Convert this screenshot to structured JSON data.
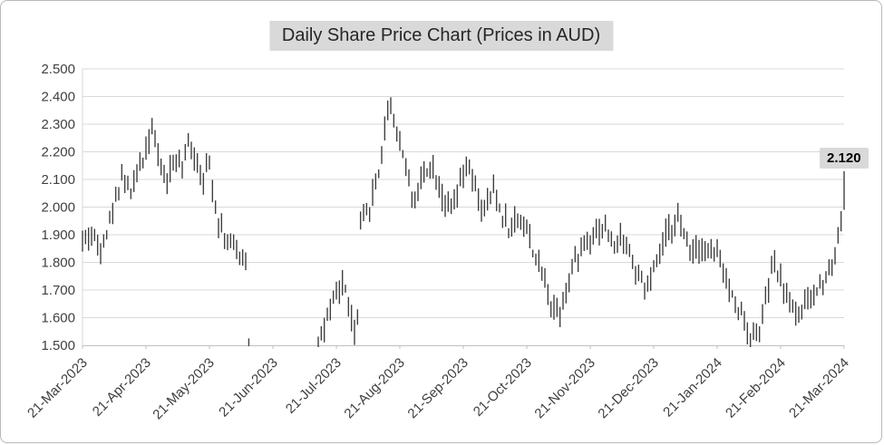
{
  "chart_data": {
    "type": "bar",
    "subtype": "daily-high-low-price-bars",
    "title": "Daily Share Price Chart (Prices in AUD)",
    "xlabel": "",
    "ylabel": "",
    "ylim": [
      1.5,
      2.5
    ],
    "y_tick_step": 0.1,
    "y_tick_labels": [
      "1.500",
      "1.600",
      "1.700",
      "1.800",
      "1.900",
      "2.000",
      "2.100",
      "2.200",
      "2.300",
      "2.400",
      "2.500"
    ],
    "x_tick_labels": [
      "21-Mar-2023",
      "21-Apr-2023",
      "21-May-2023",
      "21-Jun-2023",
      "21-Jul-2023",
      "21-Aug-2023",
      "21-Sep-2023",
      "21-Oct-2023",
      "21-Nov-2023",
      "21-Dec-2023",
      "21-Jan-2024",
      "21-Feb-2024",
      "21-Mar-2024"
    ],
    "x_range_months": 12,
    "bars_total": 253,
    "grid": true,
    "legend": "none",
    "last_price_label": "2.120",
    "last_bar": {
      "lo": 1.99,
      "hi": 2.13,
      "close": 2.12
    },
    "gap_months": [
      2.61,
      3.68
    ],
    "isolated_bars": [
      {
        "m": 2.62,
        "lo": 1.497,
        "hi": 1.525
      }
    ],
    "anchors_m_price": [
      [
        0.0,
        1.88
      ],
      [
        0.14,
        1.91
      ],
      [
        0.26,
        1.85
      ],
      [
        0.43,
        1.94
      ],
      [
        0.54,
        2.05
      ],
      [
        0.63,
        2.14
      ],
      [
        0.74,
        2.04
      ],
      [
        0.86,
        2.12
      ],
      [
        1.0,
        2.22
      ],
      [
        1.09,
        2.3
      ],
      [
        1.2,
        2.16
      ],
      [
        1.34,
        2.1
      ],
      [
        1.46,
        2.18
      ],
      [
        1.57,
        2.12
      ],
      [
        1.66,
        2.24
      ],
      [
        1.77,
        2.19
      ],
      [
        1.89,
        2.1
      ],
      [
        2.0,
        2.15
      ],
      [
        2.11,
        1.99
      ],
      [
        2.23,
        1.89
      ],
      [
        2.37,
        1.86
      ],
      [
        2.5,
        1.82
      ],
      [
        2.6,
        1.81
      ],
      [
        3.7,
        1.52
      ],
      [
        3.8,
        1.56
      ],
      [
        3.91,
        1.62
      ],
      [
        4.0,
        1.68
      ],
      [
        4.09,
        1.73
      ],
      [
        4.19,
        1.66
      ],
      [
        4.27,
        1.53
      ],
      [
        4.33,
        1.57
      ],
      [
        4.37,
        1.92
      ],
      [
        4.46,
        1.97
      ],
      [
        4.56,
        2.03
      ],
      [
        4.66,
        2.12
      ],
      [
        4.76,
        2.27
      ],
      [
        4.83,
        2.4
      ],
      [
        4.91,
        2.31
      ],
      [
        5.0,
        2.24
      ],
      [
        5.1,
        2.14
      ],
      [
        5.2,
        2.02
      ],
      [
        5.34,
        2.1
      ],
      [
        5.49,
        2.17
      ],
      [
        5.63,
        2.07
      ],
      [
        5.79,
        1.98
      ],
      [
        5.93,
        2.06
      ],
      [
        6.06,
        2.15
      ],
      [
        6.2,
        2.05
      ],
      [
        6.34,
        1.97
      ],
      [
        6.46,
        2.07
      ],
      [
        6.6,
        1.98
      ],
      [
        6.74,
        1.92
      ],
      [
        6.86,
        1.97
      ],
      [
        7.0,
        1.92
      ],
      [
        7.11,
        1.84
      ],
      [
        7.26,
        1.74
      ],
      [
        7.4,
        1.65
      ],
      [
        7.51,
        1.61
      ],
      [
        7.61,
        1.7
      ],
      [
        7.76,
        1.8
      ],
      [
        7.9,
        1.88
      ],
      [
        8.09,
        1.92
      ],
      [
        8.24,
        1.93
      ],
      [
        8.36,
        1.85
      ],
      [
        8.5,
        1.9
      ],
      [
        8.61,
        1.84
      ],
      [
        8.74,
        1.76
      ],
      [
        8.86,
        1.69
      ],
      [
        9.0,
        1.76
      ],
      [
        9.11,
        1.84
      ],
      [
        9.24,
        1.91
      ],
      [
        9.36,
        1.98
      ],
      [
        9.46,
        1.9
      ],
      [
        9.6,
        1.85
      ],
      [
        9.74,
        1.87
      ],
      [
        9.89,
        1.83
      ],
      [
        10.0,
        1.84
      ],
      [
        10.11,
        1.75
      ],
      [
        10.26,
        1.66
      ],
      [
        10.4,
        1.6
      ],
      [
        10.54,
        1.52
      ],
      [
        10.66,
        1.56
      ],
      [
        10.77,
        1.67
      ],
      [
        10.89,
        1.8
      ],
      [
        11.0,
        1.74
      ],
      [
        11.11,
        1.67
      ],
      [
        11.26,
        1.61
      ],
      [
        11.4,
        1.65
      ],
      [
        11.54,
        1.68
      ],
      [
        11.7,
        1.76
      ],
      [
        11.83,
        1.81
      ],
      [
        11.91,
        1.89
      ],
      [
        11.97,
        2.01
      ],
      [
        12.0,
        2.12
      ]
    ]
  },
  "colors": {
    "bar": "#404040",
    "grid": "#d9d9d9",
    "axis": "#bfbfbf",
    "label": "#404040",
    "title_bg": "#d9d9d9",
    "callout_bg": "#d9d9d9",
    "frame_border": "#b8b8b8"
  }
}
